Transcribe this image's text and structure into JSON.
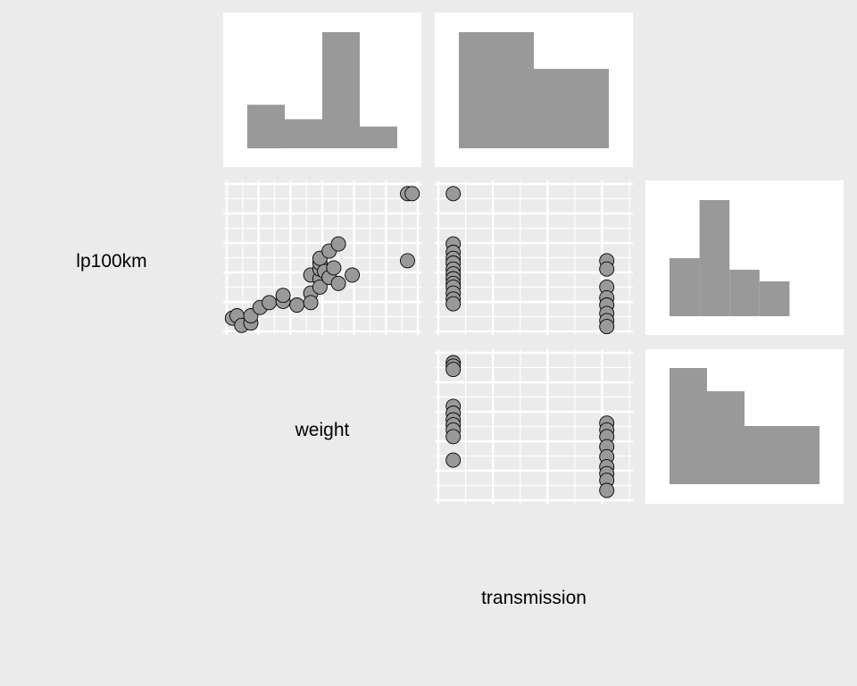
{
  "colors": {
    "background": "#EBEBEB",
    "panel": "#FFFFFF",
    "grid": "#FFFFFF",
    "fill": "#999999",
    "stroke": "#000000"
  },
  "variables": [
    "lp100km",
    "weight",
    "transmission"
  ],
  "chart_data": {
    "type": "scatter",
    "variables": [
      "lp100km",
      "weight",
      "transmission"
    ],
    "diagonal": {
      "lp100km": {
        "type": "bar",
        "bins": [
          [
            7,
            9
          ],
          [
            9,
            11
          ],
          [
            11,
            13
          ],
          [
            13,
            15
          ],
          [
            15,
            17
          ]
        ],
        "counts": [
          5,
          10,
          4,
          3,
          0
        ]
      },
      "weight": {
        "type": "bar",
        "bins": [
          [
            1.5,
            2.5
          ],
          [
            2.5,
            3.5
          ],
          [
            3.5,
            4.5
          ],
          [
            4.5,
            5.5
          ]
        ],
        "counts": [
          6,
          4,
          16,
          3
        ]
      },
      "transmission": {
        "type": "bar",
        "bins": [
          [
            -0.5,
            0.5
          ],
          [
            0.5,
            1.5
          ]
        ],
        "counts": [
          19,
          13
        ]
      }
    },
    "panels": [
      {
        "name": "lp100km-vs-weight",
        "type": "scatter",
        "x_variable": "weight",
        "y_variable": "lp100km",
        "points": [
          [
            1.5,
            6.9
          ],
          [
            1.6,
            7.1
          ],
          [
            1.7,
            6.3
          ],
          [
            1.9,
            6.5
          ],
          [
            1.9,
            7.1
          ],
          [
            2.1,
            7.8
          ],
          [
            2.3,
            8.2
          ],
          [
            2.6,
            8.3
          ],
          [
            2.6,
            8.8
          ],
          [
            2.9,
            8.0
          ],
          [
            3.2,
            9.0
          ],
          [
            3.2,
            8.2
          ],
          [
            3.2,
            10.5
          ],
          [
            3.4,
            10.2
          ],
          [
            3.4,
            9.5
          ],
          [
            3.4,
            11.0
          ],
          [
            3.4,
            11.5
          ],
          [
            3.4,
            11.9
          ],
          [
            3.5,
            10.8
          ],
          [
            3.6,
            10.3
          ],
          [
            3.6,
            12.5
          ],
          [
            3.7,
            11.1
          ],
          [
            3.8,
            9.8
          ],
          [
            3.8,
            13.1
          ],
          [
            4.1,
            10.5
          ],
          [
            5.3,
            11.7
          ],
          [
            5.3,
            17.3
          ],
          [
            5.4,
            17.3
          ]
        ],
        "xlim": [
          1.3,
          5.6
        ],
        "ylim": [
          5.5,
          18.4
        ]
      },
      {
        "name": "lp100km-vs-transmission",
        "type": "scatter",
        "x_variable": "transmission",
        "y_variable": "lp100km",
        "points": [
          [
            0,
            17.3
          ],
          [
            0,
            13.1
          ],
          [
            0,
            12.4
          ],
          [
            0,
            11.9
          ],
          [
            0,
            11.5
          ],
          [
            0,
            11.0
          ],
          [
            0,
            10.6
          ],
          [
            0,
            10.2
          ],
          [
            0,
            9.8
          ],
          [
            0,
            9.5
          ],
          [
            0,
            9.0
          ],
          [
            0,
            8.5
          ],
          [
            0,
            8.1
          ],
          [
            1,
            11.7
          ],
          [
            1,
            11.0
          ],
          [
            1,
            9.5
          ],
          [
            1,
            8.6
          ],
          [
            1,
            8.0
          ],
          [
            1,
            7.3
          ],
          [
            1,
            6.7
          ],
          [
            1,
            6.2
          ]
        ],
        "xlim": [
          -0.12,
          1.17
        ],
        "ylim": [
          5.5,
          18.4
        ]
      },
      {
        "name": "weight-vs-transmission",
        "type": "scatter",
        "x_variable": "transmission",
        "y_variable": "weight",
        "points": [
          [
            0,
            5.4
          ],
          [
            0,
            5.3
          ],
          [
            0,
            5.2
          ],
          [
            0,
            4.1
          ],
          [
            0,
            3.9
          ],
          [
            0,
            3.7
          ],
          [
            0,
            3.55
          ],
          [
            0,
            3.4
          ],
          [
            0,
            3.2
          ],
          [
            0,
            2.5
          ],
          [
            1,
            3.6
          ],
          [
            1,
            3.4
          ],
          [
            1,
            3.2
          ],
          [
            1,
            2.9
          ],
          [
            1,
            2.6
          ],
          [
            1,
            2.3
          ],
          [
            1,
            2.1
          ],
          [
            1,
            1.9
          ],
          [
            1,
            1.6
          ]
        ],
        "xlim": [
          -0.12,
          1.17
        ],
        "ylim": [
          1.2,
          5.8
        ]
      }
    ]
  }
}
